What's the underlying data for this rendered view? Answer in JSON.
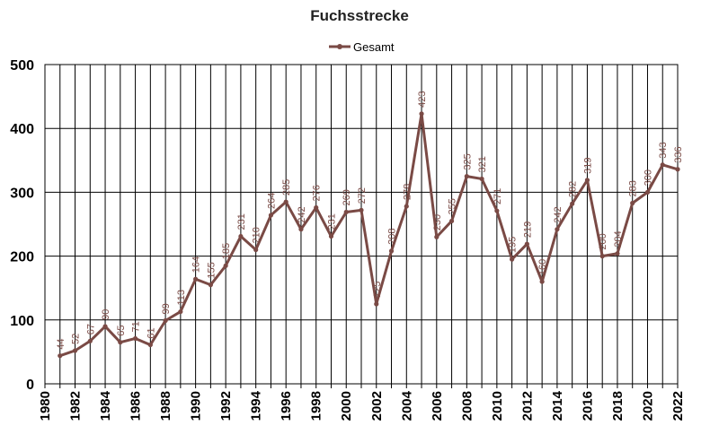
{
  "chart_data": {
    "type": "line",
    "title": "Fuchsstrecke",
    "xlabel": "",
    "ylabel": "",
    "xlim": [
      1980,
      2022
    ],
    "ylim": [
      0,
      500
    ],
    "yticks": [
      0,
      100,
      200,
      300,
      400,
      500
    ],
    "xticks": [
      1980,
      1982,
      1984,
      1986,
      1988,
      1990,
      1992,
      1994,
      1996,
      1998,
      2000,
      2002,
      2004,
      2006,
      2008,
      2010,
      2012,
      2014,
      2016,
      2018,
      2020,
      2022
    ],
    "grid": true,
    "legend": "top-center",
    "series": [
      {
        "name": "Gesamt",
        "color": "#7a4a45",
        "x": [
          1981,
          1982,
          1983,
          1984,
          1985,
          1986,
          1987,
          1988,
          1989,
          1990,
          1991,
          1992,
          1993,
          1994,
          1995,
          1996,
          1997,
          1998,
          1999,
          2000,
          2001,
          2002,
          2003,
          2004,
          2005,
          2006,
          2007,
          2008,
          2009,
          2010,
          2011,
          2012,
          2013,
          2014,
          2015,
          2016,
          2017,
          2018,
          2019,
          2020,
          2021,
          2022
        ],
        "y": [
          44,
          52,
          67,
          90,
          65,
          71,
          61,
          99,
          113,
          164,
          155,
          185,
          231,
          210,
          264,
          285,
          242,
          276,
          231,
          269,
          272,
          125,
          208,
          278,
          423,
          230,
          255,
          325,
          321,
          271,
          195,
          219,
          160,
          242,
          282,
          319,
          200,
          204,
          283,
          300,
          343,
          336
        ]
      }
    ]
  }
}
